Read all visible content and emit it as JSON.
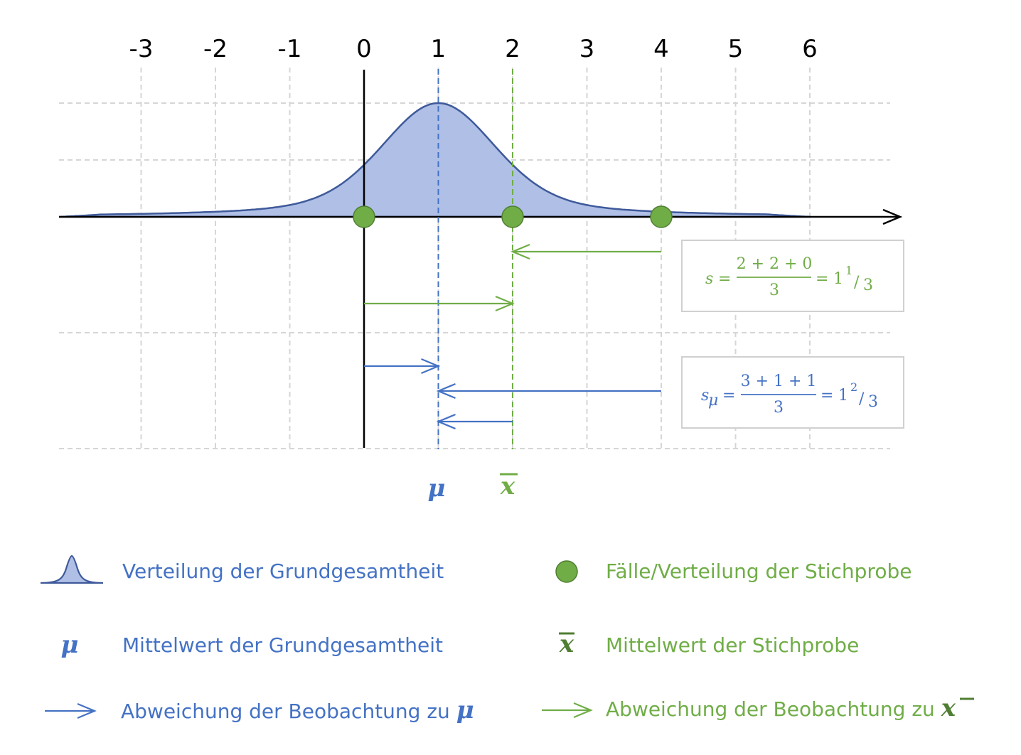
{
  "colors": {
    "blue": "#4472C4",
    "blue_fill": "#AFBFE6",
    "curve_line": "#3F5A9A",
    "green": "#70AD47",
    "green_dark": "#507E32",
    "grid": "#D6D6D6",
    "box_border": "#D0D0D0"
  },
  "axis": {
    "tick_labels": [
      "-3",
      "-2",
      "-1",
      "0",
      "1",
      "2",
      "3",
      "4",
      "5",
      "6"
    ]
  },
  "chart_data": {
    "type": "diagram",
    "population_mean": 1,
    "sample_mean": 2,
    "sample_points": [
      0,
      2,
      4
    ],
    "xlim": [
      -3,
      6
    ]
  },
  "markers": {
    "mu_symbol": "μ",
    "xbar_symbol": "x"
  },
  "formulas": {
    "s": {
      "lhs": "s",
      "numerator": "2 + 2 + 0",
      "denominator": "3",
      "eq": "=",
      "result_whole": "1",
      "result_num": "1",
      "result_den": "3"
    },
    "s_mu": {
      "lhs": "s",
      "lhs_sub": "μ",
      "numerator": "3 + 1 + 1",
      "denominator": "3",
      "eq": "=",
      "result_whole": "1",
      "result_num": "2",
      "result_den": "3"
    }
  },
  "legend": {
    "population_distribution": "Verteilung der Grundgesamtheit",
    "sample_cases": "Fälle/Verteilung der Stichprobe",
    "population_mean": "Mittelwert der Grundgesamtheit",
    "sample_mean": "Mittelwert der Stichprobe",
    "deviation_mu_prefix": "Abweichung der Beobachtung zu ",
    "deviation_mu_symbol": "μ",
    "deviation_xbar_prefix": "Abweichung der Beobachtung zu ",
    "deviation_xbar_symbol": "x"
  }
}
